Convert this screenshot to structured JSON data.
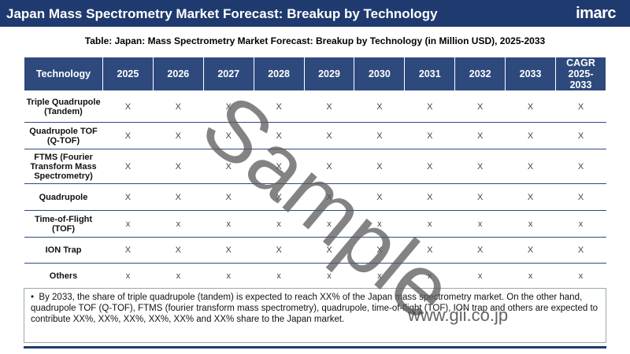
{
  "header": {
    "title": "Japan Mass Spectrometry Market Forecast: Breakup by Technology",
    "logo": "imarc"
  },
  "table": {
    "title": "Table: Japan: Mass Spectrometry Market Forecast: Breakup by Technology (in Million USD), 2025-2033",
    "columns": [
      "Technology",
      "2025",
      "2026",
      "2027",
      "2028",
      "2029",
      "2030",
      "2031",
      "2032",
      "2033",
      "CAGR 2025-2033"
    ],
    "rows": [
      [
        "Triple Quadrupole (Tandem)",
        "X",
        "X",
        "X",
        "X",
        "X",
        "X",
        "X",
        "X",
        "X",
        "X"
      ],
      [
        "Quadrupole TOF (Q-TOF)",
        "X",
        "X",
        "X",
        "X",
        "X",
        "X",
        "X",
        "X",
        "X",
        "X"
      ],
      [
        "FTMS (Fourier Transform Mass Spectrometry)",
        "X",
        "X",
        "X",
        "X",
        "X",
        "X",
        "X",
        "X",
        "X",
        "X"
      ],
      [
        "Quadrupole",
        "X",
        "X",
        "X",
        "X",
        "X",
        "X",
        "X",
        "X",
        "X",
        "X"
      ],
      [
        "Time-of-Flight (TOF)",
        "x",
        "x",
        "x",
        "x",
        "x",
        "x",
        "x",
        "x",
        "x",
        "x"
      ],
      [
        "ION Trap",
        "X",
        "X",
        "X",
        "X",
        "X",
        "X",
        "X",
        "X",
        "X",
        "X"
      ],
      [
        "Others",
        "x",
        "x",
        "x",
        "x",
        "x",
        "x",
        "x",
        "x",
        "x",
        "x"
      ]
    ]
  },
  "note": "By 2033, the share of triple quadrupole (tandem) is expected to reach XX% of the Japan mass spectrometry market. On the other hand, quadrupole TOF (Q-TOF), FTMS (fourier transform mass spectrometry), quadrupole, time-of-flight (TOF), ION trap and others are expected to contribute XX%, XX%, XX%, XX%, XX% and XX% share to the Japan market.",
  "watermark": "Sample",
  "source": "www.gii.co.jp"
}
